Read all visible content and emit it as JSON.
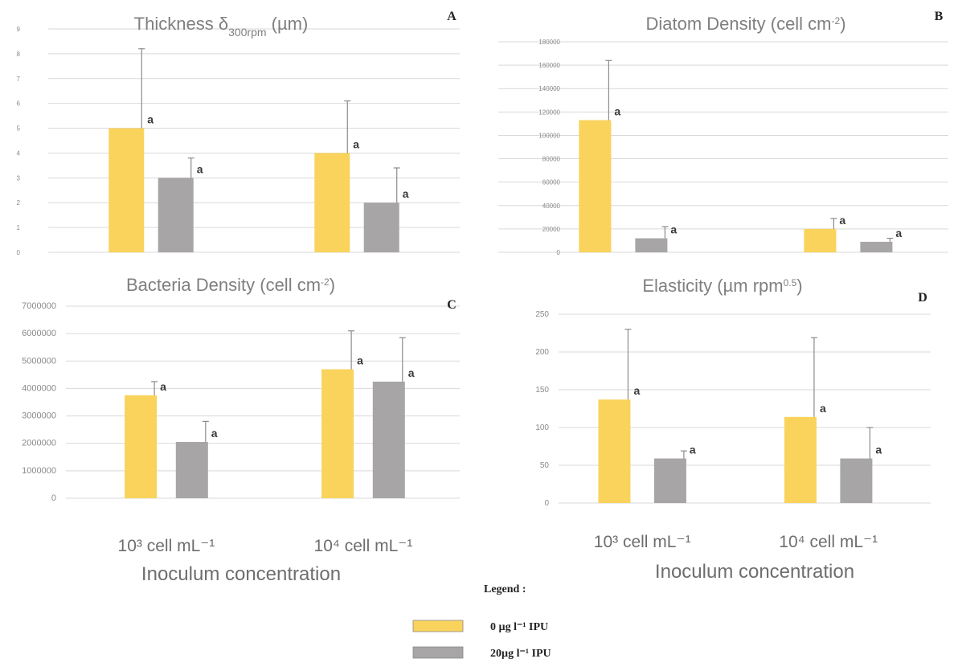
{
  "colors": {
    "series0": "#f9d35b",
    "series1": "#a7a5a6"
  },
  "legend": {
    "title": "Legend :",
    "entries": [
      {
        "label": "0 µg l⁻¹ IPU",
        "color": "#f9d35b"
      },
      {
        "label": "20µg l⁻¹ IPU",
        "color": "#a7a5a6"
      }
    ]
  },
  "chart_data": [
    {
      "id": "A",
      "letter": "A",
      "type": "bar",
      "title": "Thickness δ",
      "title_sub": "300rpm",
      "title_suffix": " (µm)",
      "ylim": [
        0,
        9
      ],
      "yticks": [
        0,
        1,
        2,
        3,
        4,
        5,
        6,
        7,
        8,
        9
      ],
      "ytick_labels": [
        "0",
        "1",
        "2",
        "3",
        "4",
        "5",
        "6",
        "7",
        "8",
        "9"
      ],
      "categories": [
        "10³ cell mL⁻¹",
        "10⁴ cell mL⁻¹"
      ],
      "series": [
        {
          "name": "0 µg l⁻¹ IPU",
          "values": [
            5,
            4
          ],
          "errors": [
            3.2,
            2.1
          ],
          "labels": [
            "a",
            "a"
          ]
        },
        {
          "name": "20µg l⁻¹ IPU",
          "values": [
            3,
            2
          ],
          "errors": [
            0.8,
            1.4
          ],
          "labels": [
            "a",
            "a"
          ]
        }
      ],
      "grid": true
    },
    {
      "id": "B",
      "letter": "B",
      "type": "bar",
      "title": "Diatom Density (cell cm",
      "title_sup": "-2",
      "title_suffix": ")",
      "ylim": [
        0,
        180000
      ],
      "yticks": [
        0,
        20000,
        40000,
        60000,
        80000,
        100000,
        120000,
        140000,
        160000,
        180000
      ],
      "ytick_labels": [
        "0",
        "20000",
        "40000",
        "60000",
        "80000",
        "100000",
        "120000",
        "140000",
        "160000",
        "180000"
      ],
      "categories": [
        "10³ cell mL⁻¹",
        "10⁴ cell mL⁻¹"
      ],
      "series": [
        {
          "name": "0 µg l⁻¹ IPU",
          "values": [
            113000,
            20000
          ],
          "errors": [
            51000,
            9000
          ],
          "labels": [
            "a",
            "a"
          ]
        },
        {
          "name": "20µg l⁻¹ IPU",
          "values": [
            12000,
            9000
          ],
          "errors": [
            10000,
            3000
          ],
          "labels": [
            "a",
            "a"
          ]
        }
      ],
      "grid": true
    },
    {
      "id": "C",
      "letter": "C",
      "type": "bar",
      "title": "Bacteria Density (cell cm",
      "title_sup": "-2",
      "title_suffix": ")",
      "ylim": [
        0,
        7000000
      ],
      "yticks": [
        0,
        1000000,
        2000000,
        3000000,
        4000000,
        5000000,
        6000000,
        7000000
      ],
      "ytick_labels": [
        "0",
        "1000000",
        "2000000",
        "3000000",
        "4000000",
        "5000000",
        "6000000",
        "7000000"
      ],
      "categories": [
        "10³ cell mL⁻¹",
        "10⁴ cell mL⁻¹"
      ],
      "series": [
        {
          "name": "0 µg l⁻¹ IPU",
          "values": [
            3750000,
            4700000
          ],
          "errors": [
            500000,
            1400000
          ],
          "labels": [
            "a",
            "a"
          ]
        },
        {
          "name": "20µg l⁻¹ IPU",
          "values": [
            2050000,
            4250000
          ],
          "errors": [
            750000,
            1600000
          ],
          "labels": [
            "a",
            "a"
          ]
        }
      ],
      "xlabel": "Inoculum concentration",
      "grid": true
    },
    {
      "id": "D",
      "letter": "D",
      "type": "bar",
      "title": "Elasticity (µm rpm",
      "title_sup": "0.5",
      "title_suffix": ")",
      "ylim": [
        0,
        250
      ],
      "yticks": [
        0,
        50,
        100,
        150,
        200,
        250
      ],
      "ytick_labels": [
        "0",
        "50",
        "100",
        "150",
        "200",
        "250"
      ],
      "categories": [
        "10³ cell mL⁻¹",
        "10⁴ cell mL⁻¹"
      ],
      "series": [
        {
          "name": "0 µg l⁻¹ IPU",
          "values": [
            137,
            114
          ],
          "errors": [
            93,
            105
          ],
          "labels": [
            "a",
            "a"
          ]
        },
        {
          "name": "20µg l⁻¹ IPU",
          "values": [
            59,
            59
          ],
          "errors": [
            10,
            41
          ],
          "labels": [
            "a",
            "a"
          ]
        }
      ],
      "xlabel": "Inoculum concentration",
      "grid": true
    }
  ]
}
